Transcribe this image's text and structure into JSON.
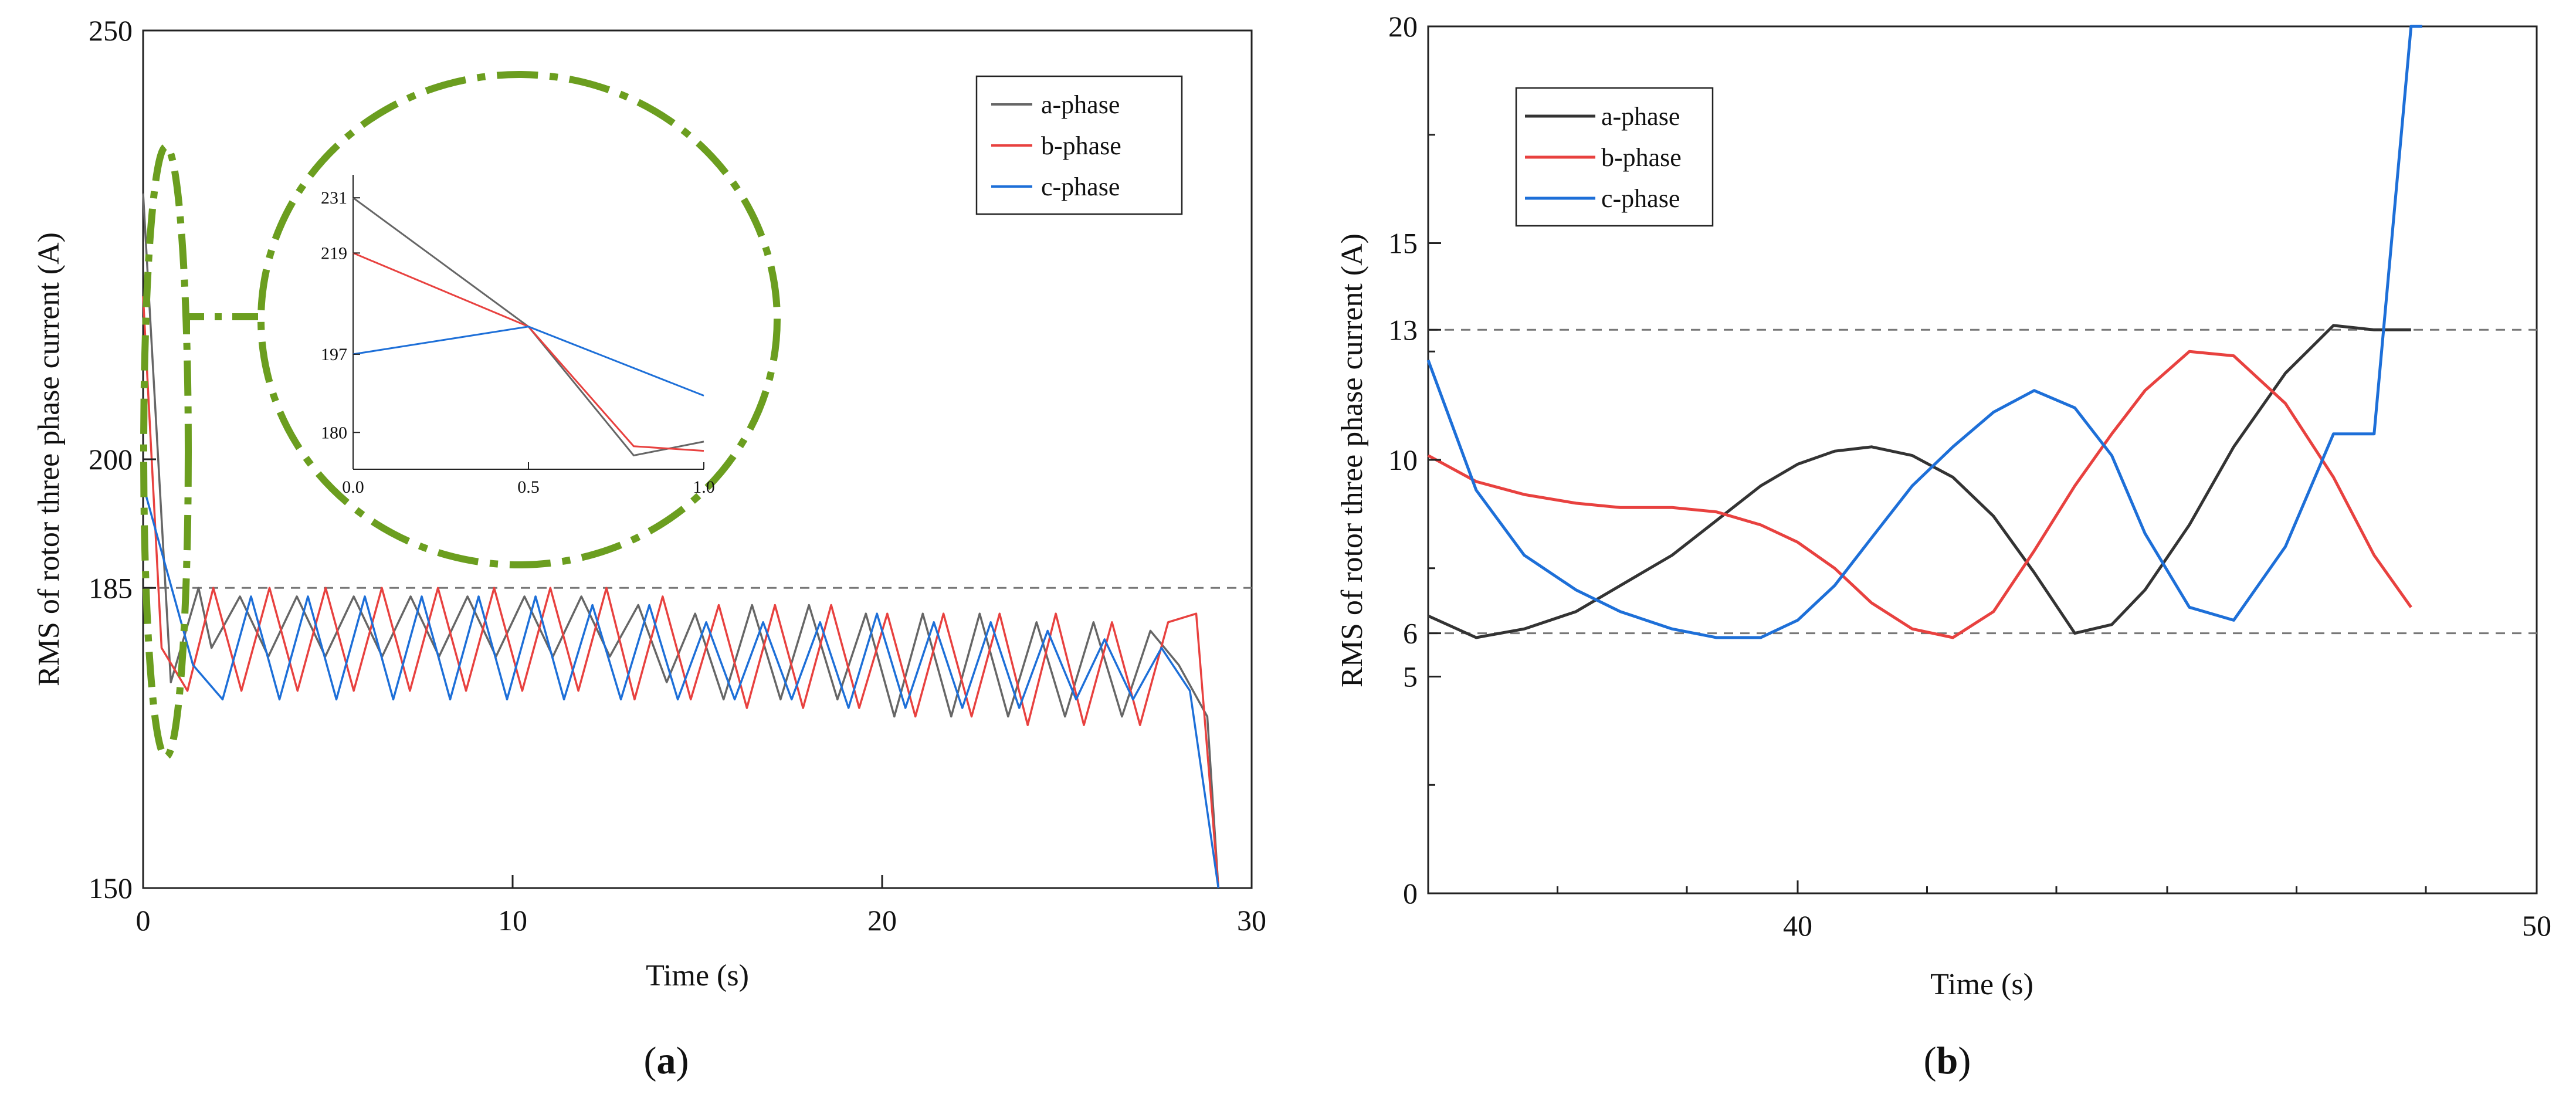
{
  "chart_data": [
    {
      "type": "line",
      "panel_label": "(a)",
      "caption_letter": "a",
      "xlabel": "Time (s)",
      "ylabel": "RMS of rotor three phase current (A)",
      "xlim": [
        0,
        30
      ],
      "ylim": [
        150,
        250
      ],
      "x_ticks": [
        0,
        10,
        20,
        30
      ],
      "y_ticks": [
        150,
        185,
        200,
        250
      ],
      "reference_lines": [
        185
      ],
      "legend_position": "top-right",
      "colors": {
        "a-phase": "#666666",
        "b-phase": "#e8413f",
        "c-phase": "#1d6fd8",
        "highlight": "#6b9e1f",
        "refline": "#777777"
      },
      "series": [
        {
          "name": "a-phase",
          "x": [
            0,
            0.75,
            1.5,
            1.85,
            2.62,
            3.39,
            4.16,
            4.93,
            5.7,
            6.47,
            7.24,
            8.01,
            8.78,
            9.55,
            10.32,
            11.09,
            11.86,
            12.63,
            13.4,
            14.17,
            14.94,
            15.71,
            16.48,
            17.25,
            18.02,
            18.79,
            19.56,
            20.33,
            21.1,
            21.87,
            22.64,
            23.41,
            24.18,
            24.95,
            25.72,
            26.49,
            27.26,
            28.03,
            28.8,
            29.1
          ],
          "values": [
            231,
            174,
            185,
            178,
            184,
            177,
            184,
            177,
            184,
            177,
            184,
            177,
            184,
            177,
            184,
            177,
            184,
            177,
            183,
            174,
            182,
            172,
            183,
            172,
            183,
            172,
            182,
            170,
            182,
            170,
            182,
            170,
            181,
            170,
            181,
            170,
            180,
            176,
            170,
            150
          ]
        },
        {
          "name": "b-phase",
          "x": [
            0,
            0.5,
            1.2,
            1.9,
            2.66,
            3.42,
            4.18,
            4.94,
            5.7,
            6.46,
            7.22,
            7.98,
            8.74,
            9.5,
            10.26,
            11.02,
            11.78,
            12.54,
            13.3,
            14.06,
            14.82,
            15.58,
            16.34,
            17.1,
            17.86,
            18.62,
            19.38,
            20.14,
            20.9,
            21.66,
            22.42,
            23.18,
            23.94,
            24.7,
            25.46,
            26.22,
            26.98,
            27.74,
            28.5,
            29.1
          ],
          "values": [
            219,
            178,
            173,
            185,
            173,
            185,
            173,
            185,
            173,
            185,
            173,
            185,
            173,
            185,
            173,
            185,
            173,
            185,
            172,
            184,
            172,
            183,
            171,
            183,
            171,
            183,
            171,
            182,
            170,
            182,
            170,
            182,
            169,
            182,
            169,
            181,
            169,
            181,
            182,
            150
          ]
        },
        {
          "name": "c-phase",
          "x": [
            0,
            1.35,
            2.15,
            2.92,
            3.69,
            4.46,
            5.23,
            6.0,
            6.77,
            7.54,
            8.31,
            9.08,
            9.85,
            10.62,
            11.39,
            12.16,
            12.93,
            13.7,
            14.47,
            15.24,
            16.01,
            16.78,
            17.55,
            18.32,
            19.09,
            19.86,
            20.63,
            21.4,
            22.17,
            22.94,
            23.71,
            24.48,
            25.25,
            26.02,
            26.79,
            27.56,
            28.33,
            29.1
          ],
          "values": [
            197,
            176,
            172,
            184,
            172,
            184,
            172,
            184,
            172,
            184,
            172,
            184,
            172,
            184,
            172,
            183,
            172,
            183,
            172,
            181,
            172,
            181,
            172,
            181,
            171,
            182,
            171,
            181,
            171,
            181,
            171,
            180,
            172,
            179,
            172,
            178,
            173,
            150
          ]
        }
      ],
      "inset": {
        "x_ticks": [
          "0.0",
          "0.5",
          "1.0"
        ],
        "y_ticks": [
          "231",
          "219",
          "197",
          "180"
        ],
        "xlim": [
          0,
          1.0
        ],
        "ylim": [
          172,
          236
        ],
        "series": [
          {
            "name": "a-phase",
            "x": [
              0,
              0.5,
              0.8,
              1.0
            ],
            "values": [
              231,
              203,
              175,
              178
            ]
          },
          {
            "name": "b-phase",
            "x": [
              0,
              0.5,
              0.8,
              1.0
            ],
            "values": [
              219,
              203,
              177,
              176
            ]
          },
          {
            "name": "c-phase",
            "x": [
              0,
              0.5,
              1.0
            ],
            "values": [
              197,
              203,
              188
            ]
          }
        ]
      }
    },
    {
      "type": "line",
      "panel_label": "(b)",
      "caption_letter": "b",
      "xlabel": "Time (s)",
      "ylabel": "RMS of rotor three phase current (A)",
      "xlim": [
        35,
        50
      ],
      "ylim": [
        0,
        20
      ],
      "x_ticks": [
        40,
        50
      ],
      "x_minor_ticks": [
        35,
        36.75,
        38.5,
        40,
        41.75,
        43.5,
        45,
        46.75,
        48.5,
        50
      ],
      "y_ticks": [
        0,
        5,
        6,
        10,
        13,
        15,
        20
      ],
      "y_minor_ticks": [
        2.5,
        7.5,
        12.5,
        17.5
      ],
      "reference_lines": [
        6,
        13
      ],
      "legend_position": "top-left",
      "colors": {
        "a-phase": "#333333",
        "b-phase": "#e8413f",
        "c-phase": "#1d6fd8",
        "refline": "#777777"
      },
      "series": [
        {
          "name": "a-phase",
          "x": [
            35,
            35.65,
            36.3,
            37.0,
            37.6,
            38.3,
            38.9,
            39.5,
            40.0,
            40.5,
            41.0,
            41.55,
            42.1,
            42.65,
            43.2,
            43.75,
            44.25,
            44.7,
            45.3,
            45.9,
            46.6,
            47.25,
            47.8,
            48.3
          ],
          "values": [
            6.4,
            5.9,
            6.1,
            6.5,
            7.1,
            7.8,
            8.6,
            9.4,
            9.9,
            10.2,
            10.3,
            10.1,
            9.6,
            8.7,
            7.4,
            6.0,
            6.2,
            7.0,
            8.5,
            10.3,
            12.0,
            13.1,
            13.0,
            13.0
          ]
        },
        {
          "name": "b-phase",
          "x": [
            35,
            35.65,
            36.3,
            37.0,
            37.6,
            38.3,
            38.9,
            39.5,
            40.0,
            40.5,
            41.0,
            41.55,
            42.1,
            42.65,
            43.2,
            43.75,
            44.25,
            44.7,
            45.3,
            45.9,
            46.6,
            47.25,
            47.8,
            48.3
          ],
          "values": [
            10.1,
            9.5,
            9.2,
            9.0,
            8.9,
            8.9,
            8.8,
            8.5,
            8.1,
            7.5,
            6.7,
            6.1,
            5.9,
            6.5,
            7.9,
            9.4,
            10.6,
            11.6,
            12.5,
            12.4,
            11.3,
            9.6,
            7.8,
            6.6
          ]
        },
        {
          "name": "c-phase",
          "x": [
            35,
            35.65,
            36.3,
            37.0,
            37.6,
            38.3,
            38.9,
            39.5,
            40.0,
            40.5,
            41.0,
            41.55,
            42.1,
            42.65,
            43.2,
            43.75,
            44.25,
            44.7,
            45.3,
            45.9,
            46.6,
            47.25,
            47.8,
            48.3,
            48.45
          ],
          "values": [
            12.3,
            9.3,
            7.8,
            7.0,
            6.5,
            6.1,
            5.9,
            5.9,
            6.3,
            7.1,
            8.2,
            9.4,
            10.3,
            11.1,
            11.6,
            11.2,
            10.1,
            8.3,
            6.6,
            6.3,
            8.0,
            10.6,
            10.6,
            20.0,
            20.0
          ]
        }
      ]
    }
  ]
}
